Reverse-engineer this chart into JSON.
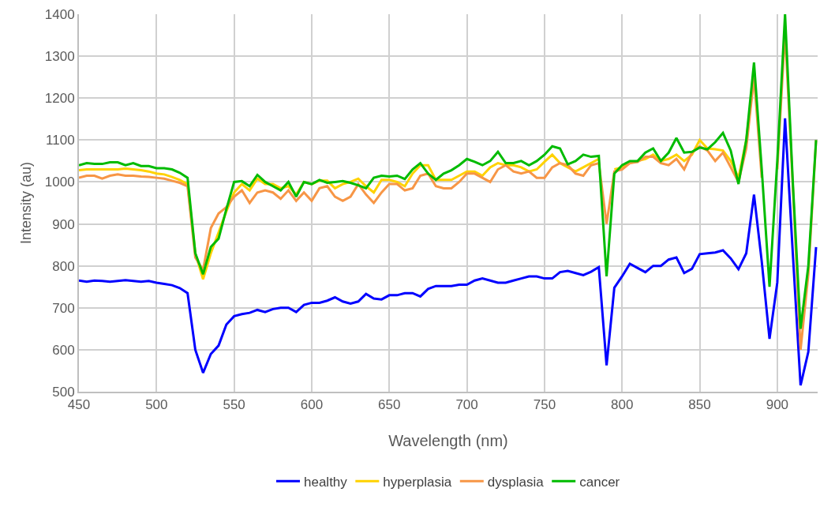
{
  "chart_data": {
    "type": "line",
    "xlabel": "Wavelength (nm)",
    "ylabel": "Intensity (au)",
    "x": [
      450,
      455,
      460,
      465,
      470,
      475,
      480,
      485,
      490,
      495,
      500,
      505,
      510,
      515,
      520,
      525,
      530,
      535,
      540,
      545,
      550,
      555,
      560,
      565,
      570,
      575,
      580,
      585,
      590,
      595,
      600,
      605,
      610,
      615,
      620,
      625,
      630,
      635,
      640,
      645,
      650,
      655,
      660,
      665,
      670,
      675,
      680,
      685,
      690,
      695,
      700,
      705,
      710,
      715,
      720,
      725,
      730,
      735,
      740,
      745,
      750,
      755,
      760,
      765,
      770,
      775,
      780,
      785,
      790,
      795,
      800,
      805,
      810,
      815,
      820,
      825,
      830,
      835,
      840,
      845,
      850,
      855,
      860,
      865,
      870,
      875,
      880,
      885,
      890,
      895,
      900,
      905,
      910,
      915,
      920,
      925
    ],
    "series": [
      {
        "name": "healthy",
        "color": "#0000ff",
        "values": [
          765,
          762,
          765,
          764,
          762,
          764,
          766,
          764,
          762,
          764,
          760,
          757,
          754,
          747,
          735,
          600,
          545,
          590,
          610,
          660,
          680,
          685,
          688,
          695,
          690,
          697,
          700,
          700,
          690,
          707,
          712,
          712,
          717,
          725,
          715,
          710,
          715,
          733,
          722,
          720,
          730,
          730,
          735,
          735,
          727,
          745,
          752,
          752,
          752,
          755,
          755,
          765,
          770,
          765,
          760,
          760,
          765,
          770,
          775,
          775,
          770,
          770,
          785,
          788,
          783,
          778,
          786,
          797,
          563,
          748,
          775,
          805,
          795,
          785,
          800,
          800,
          815,
          820,
          783,
          793,
          828,
          830,
          832,
          837,
          818,
          792,
          830,
          970,
          810,
          626,
          760,
          1152,
          830,
          515,
          595,
          845
        ]
      },
      {
        "name": "hyperplasia",
        "color": "#ffd200",
        "values": [
          1028,
          1030,
          1030,
          1030,
          1030,
          1030,
          1032,
          1030,
          1028,
          1025,
          1020,
          1018,
          1012,
          1005,
          995,
          830,
          768,
          830,
          880,
          930,
          975,
          995,
          980,
          1008,
          995,
          995,
          985,
          990,
          970,
          1000,
          995,
          1003,
          1003,
          985,
          995,
          1000,
          1008,
          990,
          975,
          1005,
          1005,
          1000,
          990,
          1020,
          1040,
          1040,
          1005,
          1005,
          1005,
          1015,
          1025,
          1025,
          1015,
          1035,
          1045,
          1040,
          1040,
          1035,
          1025,
          1030,
          1048,
          1065,
          1045,
          1035,
          1025,
          1035,
          1045,
          1055,
          null,
          1030,
          1035,
          1045,
          1050,
          1055,
          1065,
          1050,
          1055,
          1065,
          1050,
          1065,
          1100,
          1080,
          1078,
          1075,
          1050,
          1010,
          1100,
          1250,
          null,
          null,
          null,
          null,
          null,
          null,
          null,
          null
        ]
      },
      {
        "name": "dysplasia",
        "color": "#f79646",
        "values": [
          1010,
          1015,
          1015,
          1008,
          1015,
          1018,
          1015,
          1015,
          1013,
          1012,
          1010,
          1008,
          1003,
          998,
          990,
          820,
          790,
          890,
          925,
          940,
          965,
          980,
          950,
          975,
          980,
          975,
          960,
          980,
          955,
          975,
          955,
          985,
          990,
          965,
          955,
          965,
          995,
          970,
          950,
          975,
          995,
          995,
          980,
          985,
          1015,
          1020,
          990,
          985,
          985,
          1000,
          1020,
          1020,
          1010,
          1000,
          1030,
          1040,
          1025,
          1020,
          1025,
          1010,
          1010,
          1035,
          1045,
          1040,
          1020,
          1015,
          1040,
          1045,
          900,
          1025,
          1030,
          1045,
          1048,
          1060,
          1060,
          1045,
          1040,
          1055,
          1030,
          1070,
          1085,
          1075,
          1050,
          1070,
          1035,
          1000,
          1080,
          1250,
          1010,
          null,
          1030,
          1360,
          990,
          600,
          780,
          1100
        ]
      },
      {
        "name": "cancer",
        "color": "#00bb00",
        "values": [
          1040,
          1045,
          1043,
          1043,
          1047,
          1047,
          1040,
          1045,
          1038,
          1038,
          1033,
          1033,
          1030,
          1022,
          1010,
          830,
          780,
          845,
          865,
          935,
          1000,
          1002,
          990,
          1017,
          1000,
          990,
          980,
          1000,
          965,
          1000,
          995,
          1005,
          998,
          1000,
          1002,
          998,
          992,
          985,
          1010,
          1015,
          1013,
          1015,
          1007,
          1030,
          1045,
          1020,
          1005,
          1020,
          1028,
          1040,
          1055,
          1048,
          1040,
          1050,
          1072,
          1045,
          1045,
          1050,
          1040,
          1050,
          1065,
          1085,
          1080,
          1042,
          1050,
          1065,
          1060,
          1062,
          775,
          1020,
          1040,
          1050,
          1050,
          1070,
          1080,
          1050,
          1070,
          1105,
          1070,
          1072,
          1082,
          1078,
          1095,
          1117,
          1075,
          995,
          1100,
          1285,
          1030,
          750,
          1050,
          1400,
          1000,
          650,
          800,
          1100
        ]
      }
    ],
    "xlim": [
      450,
      926
    ],
    "xticks": [
      450,
      500,
      550,
      600,
      650,
      700,
      750,
      800,
      850,
      900
    ],
    "ylim": [
      500,
      1400
    ],
    "yticks": [
      500,
      600,
      700,
      800,
      900,
      1000,
      1100,
      1200,
      1300,
      1400
    ],
    "grid": true,
    "legend": "bottom",
    "marker": "none",
    "line_style": "solid"
  }
}
